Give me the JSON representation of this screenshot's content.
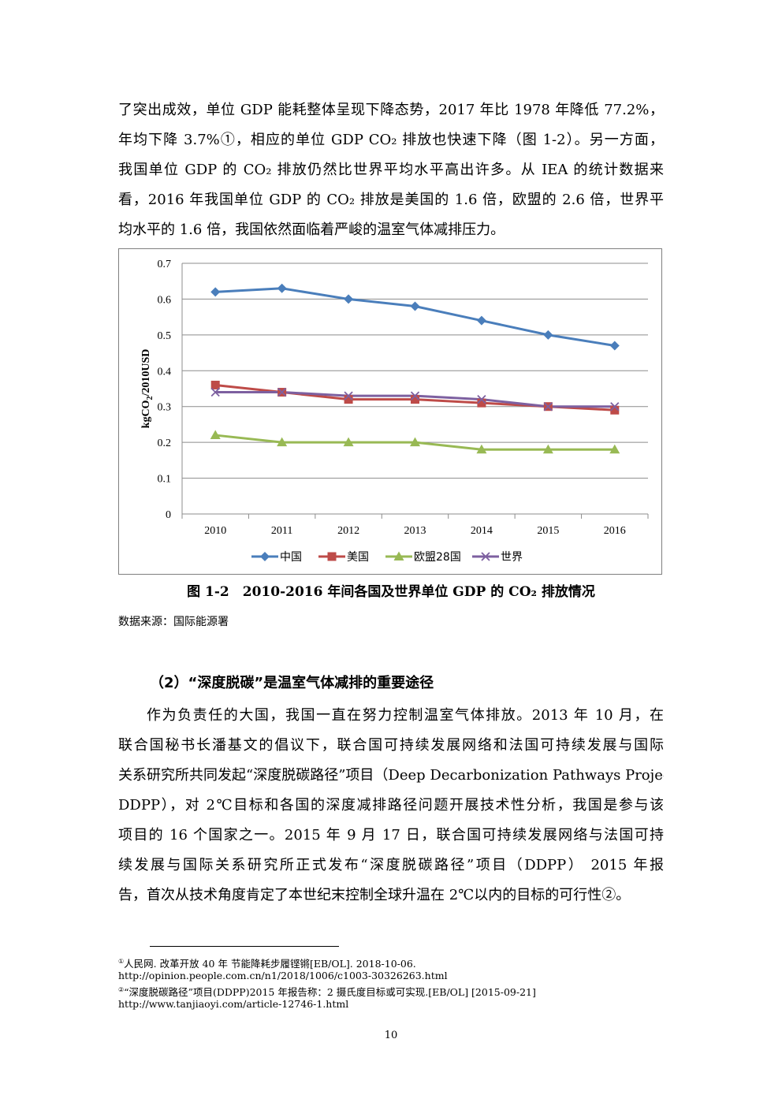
{
  "paragraph1": {
    "lines": [
      "了突出成效，单位 GDP 能耗整体呈现下降态势，2017 年比 1978 年降低 77.2%，",
      "年均下降 3.7%①，相应的单位 GDP CO₂ 排放也快速下降（图 1-2）。另一方面，",
      "我国单位 GDP 的 CO₂ 排放仍然比世界平均水平高出许多。从 IEA 的统计数据来",
      "看，2016 年我国单位 GDP 的 CO₂ 排放是美国的 1.6 倍，欧盟的 2.6 倍，世界平",
      "均水平的 1.6 倍，我国依然面临着严峻的温室气体减排压力。"
    ]
  },
  "chart_data": {
    "type": "line",
    "categories": [
      "2010",
      "2011",
      "2012",
      "2013",
      "2014",
      "2015",
      "2016"
    ],
    "ylabel": "kgCO2/2010USD",
    "ylim": [
      0,
      0.7
    ],
    "yticks": [
      "0",
      "0.1",
      "0.2",
      "0.3",
      "0.4",
      "0.5",
      "0.6",
      "0.7"
    ],
    "grid": true,
    "legend_position": "bottom",
    "series": [
      {
        "name": "中国",
        "values": [
          0.62,
          0.63,
          0.6,
          0.58,
          0.54,
          0.5,
          0.47
        ],
        "color": "#4a7ebb",
        "marker": "diamond"
      },
      {
        "name": "美国",
        "values": [
          0.36,
          0.34,
          0.32,
          0.32,
          0.31,
          0.3,
          0.29
        ],
        "color": "#be4b48",
        "marker": "square"
      },
      {
        "name": "欧盟28国",
        "values": [
          0.22,
          0.2,
          0.2,
          0.2,
          0.18,
          0.18,
          0.18
        ],
        "color": "#98b954",
        "marker": "triangle"
      },
      {
        "name": "世界",
        "values": [
          0.34,
          0.34,
          0.33,
          0.33,
          0.32,
          0.3,
          0.3
        ],
        "color": "#7d60a0",
        "marker": "x"
      }
    ]
  },
  "figure": {
    "caption": "图 1-2　2010-2016 年间各国及世界单位 GDP 的 CO₂ 排放情况",
    "source": "数据来源：国际能源署"
  },
  "section": {
    "heading": "（2）“深度脱碳”是温室气体减排的重要途径"
  },
  "paragraph2": {
    "lines": [
      "作为负责任的大国，我国一直在努力控制温室气体排放。2013 年 10 月，在",
      "联合国秘书长潘基文的倡议下，联合国可持续发展网络和法国可持续发展与国际",
      "关系研究所共同发起“深度脱碳路径”项目（Deep Decarbonization Pathways Project,",
      "DDPP），对 2℃目标和各国的深度减排路径问题开展技术性分析，我国是参与该",
      "项目的 16 个国家之一。2015 年 9 月 17 日，联合国可持续发展网络与法国可持",
      "续发展与国际关系研究所正式发布“深度脱碳路径”项目（DDPP） 2015 年报",
      "告，首次从技术角度肯定了本世纪末控制全球升温在 2℃以内的目标的可行性②。"
    ]
  },
  "footnotes": {
    "fn1_marker": "①",
    "fn1_text": "人民网. 改革开放 40 年 节能降耗步履铿锵[EB/OL]. 2018-10-06.",
    "fn1_url": "http://opinion.people.com.cn/n1/2018/1006/c1003-30326263.html",
    "fn2_marker": "②",
    "fn2_text": "“深度脱碳路径”项目(DDPP)2015 年报告称：2 摄氏度目标或可实现.[EB/OL] [2015-09-21]",
    "fn2_url": "http://www.tanjiaoyi.com/article-12746-1.html"
  },
  "page_number": "10"
}
